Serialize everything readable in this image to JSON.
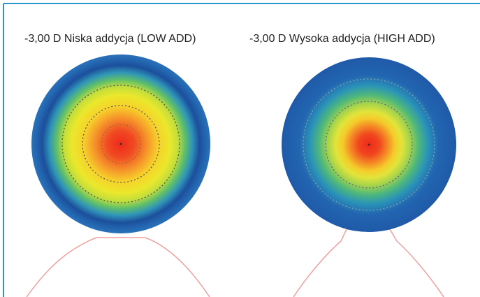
{
  "figure": {
    "panels": [
      {
        "label": "-3,00 D Niska addycja (LOW ADD)"
      },
      {
        "label": "-3,00 D Wysoka addycja (HIGH ADD)"
      }
    ]
  }
}
